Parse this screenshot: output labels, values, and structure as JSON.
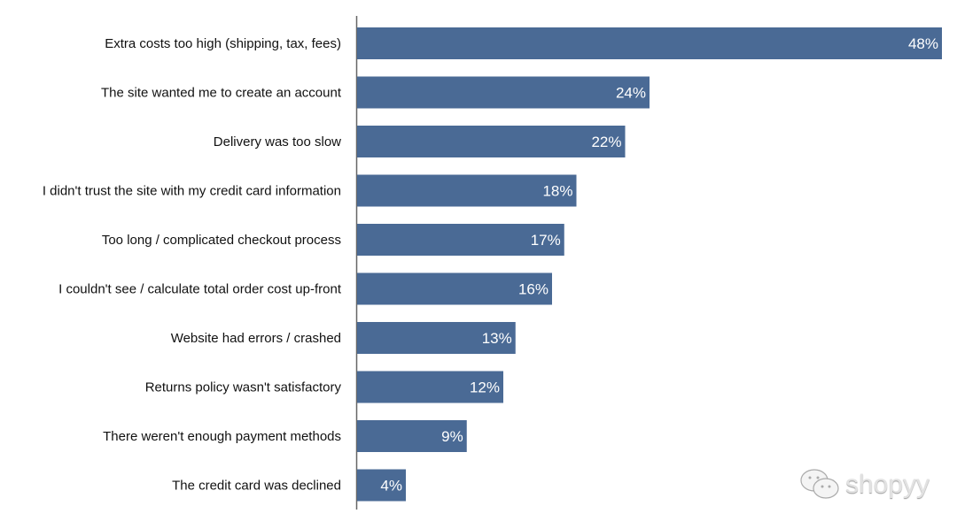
{
  "chart_data": {
    "type": "bar",
    "orientation": "horizontal",
    "categories": [
      "Extra costs too high (shipping, tax, fees)",
      "The site wanted me to create an account",
      "Delivery was too slow",
      "I didn't trust the site with my credit card information",
      "Too long / complicated checkout process",
      "I couldn't see / calculate total order cost up-front",
      "Website had errors / crashed",
      "Returns policy wasn't satisfactory",
      "There weren't enough payment methods",
      "The credit card was declined"
    ],
    "values": [
      48,
      24,
      22,
      18,
      17,
      16,
      13,
      12,
      9,
      4
    ],
    "data_labels": [
      "48%",
      "24%",
      "22%",
      "18%",
      "17%",
      "16%",
      "13%",
      "12%",
      "9%",
      "4%"
    ],
    "xlim": [
      0,
      48
    ],
    "grid": false,
    "bar_color": "#4a6a95"
  },
  "watermark": {
    "text": "shopyy",
    "icon": "wechat-icon"
  }
}
